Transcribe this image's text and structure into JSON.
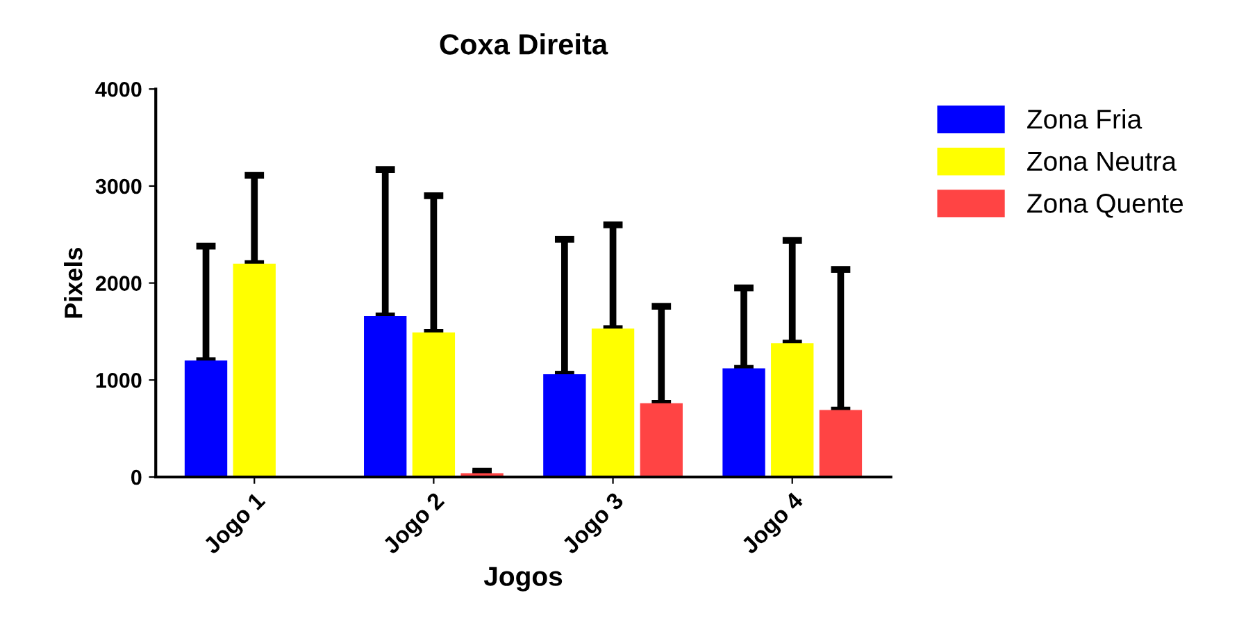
{
  "chart_data": {
    "type": "bar",
    "title": "Coxa Direita",
    "xlabel": "Jogos",
    "ylabel": "Pixels",
    "categories": [
      "Jogo 1",
      "Jogo 2",
      "Jogo 3",
      "Jogo 4"
    ],
    "series": [
      {
        "name": "Zona Fria",
        "color": "#0000ff",
        "values": [
          1200,
          1660,
          1060,
          1120
        ],
        "errors": [
          [
            1200,
            2380
          ],
          [
            1660,
            3170
          ],
          [
            1060,
            2450
          ],
          [
            1120,
            1950
          ]
        ]
      },
      {
        "name": "Zona Neutra",
        "color": "#ffff00",
        "values": [
          2200,
          1490,
          1530,
          1380
        ],
        "errors": [
          [
            2200,
            3110
          ],
          [
            1490,
            2900
          ],
          [
            1530,
            2600
          ],
          [
            1380,
            2440
          ]
        ]
      },
      {
        "name": "Zona Quente",
        "color": "#ff4444",
        "values": [
          null,
          40,
          760,
          690
        ],
        "errors": [
          null,
          [
            40,
            60
          ],
          [
            760,
            1760
          ],
          [
            690,
            2140
          ]
        ]
      }
    ],
    "ylim": [
      0,
      4000
    ],
    "yticks": [
      0,
      1000,
      2000,
      3000,
      4000
    ],
    "grid": false,
    "legend": "top right"
  }
}
